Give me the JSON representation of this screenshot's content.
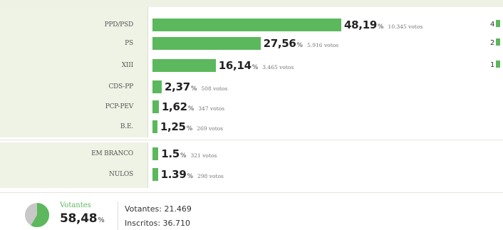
{
  "parties": [
    {
      "label": "PPD/PSD",
      "pct": "48,19",
      "votes": "10.345 votos",
      "seats": "4",
      "value": 48.19
    },
    {
      "label": "PS",
      "pct": "27,56",
      "votes": "5.916 votos",
      "seats": "2",
      "value": 27.56
    },
    {
      "label": "XIII",
      "pct": "16,14",
      "votes": "3.465 votos",
      "seats": "1",
      "value": 16.14
    },
    {
      "label": "CDS-PP",
      "pct": "2,37",
      "votes": "508 votos",
      "seats": "",
      "value": 2.37
    },
    {
      "label": "PCP-PEV",
      "pct": "1,62",
      "votes": "347 votos",
      "seats": "",
      "value": 1.62
    },
    {
      "label": "B.E.",
      "pct": "1,25",
      "votes": "269 votos",
      "seats": "",
      "value": 1.25
    }
  ],
  "others": [
    {
      "label": "EM BRANCO",
      "pct": "1.5",
      "votes": "321 votos",
      "value": 1.5
    },
    {
      "label": "NULOS",
      "pct": "1.39",
      "votes": "298 votos",
      "value": 1.39
    }
  ],
  "pct_symbol": "%",
  "turnout": {
    "title": "Votantes",
    "pct": "58,48",
    "pct_value": 58.48,
    "votantes_text": "Votantes: 21.469",
    "inscritos_text": "Inscritos: 36.710"
  },
  "colors": {
    "bar": "#5cb85c",
    "pie_fill": "#5cb85c",
    "pie_rest": "#c8c8c8"
  }
}
